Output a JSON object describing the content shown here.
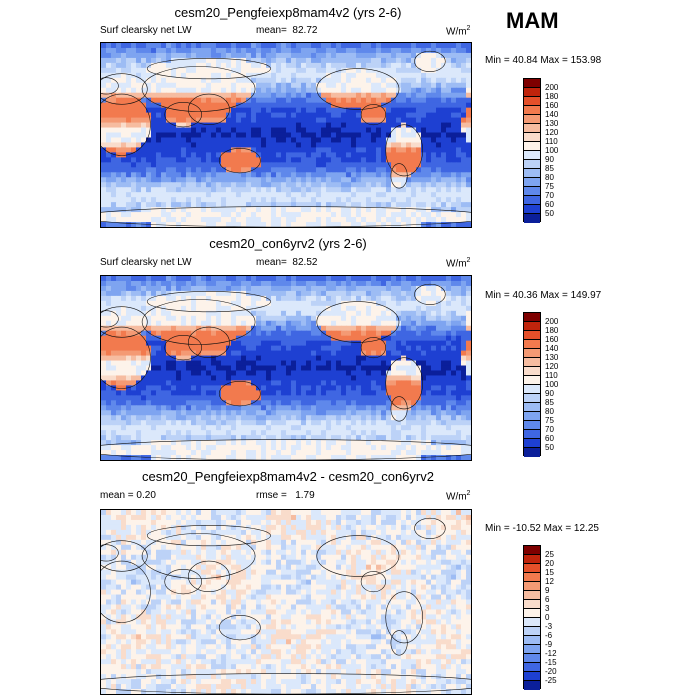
{
  "season": "MAM",
  "panels": [
    {
      "title": "cesm20_Pengfeiexp8mam4v2 (yrs 2-6)",
      "left_label": "Surf clearsky net LW",
      "mean_label": "mean=",
      "mean_value": "82.72",
      "units": "W/m",
      "units_exp": "2",
      "minmax": "Min =  40.84 Max = 153.98",
      "levels": [
        "200",
        "180",
        "160",
        "140",
        "130",
        "120",
        "110",
        "100",
        "90",
        "85",
        "80",
        "75",
        "70",
        "60",
        "50"
      ],
      "colors": [
        "#7e0000",
        "#c0240c",
        "#e5502a",
        "#f27a4e",
        "#f49a74",
        "#f6bca0",
        "#f9dccb",
        "#fdf3ea",
        "#dbe8fb",
        "#bcd2f7",
        "#9dbcf4",
        "#7ea4f0",
        "#5f88eb",
        "#3f66e2",
        "#1e40d2",
        "#0b1f9a"
      ],
      "field": "base"
    },
    {
      "title": "cesm20_con6yrv2 (yrs 2-6)",
      "left_label": "Surf clearsky net LW",
      "mean_label": "mean=",
      "mean_value": "82.52",
      "units": "W/m",
      "units_exp": "2",
      "minmax": "Min =  40.36 Max = 149.97",
      "levels": [
        "200",
        "180",
        "160",
        "140",
        "130",
        "120",
        "110",
        "100",
        "90",
        "85",
        "80",
        "75",
        "70",
        "60",
        "50"
      ],
      "colors": [
        "#7e0000",
        "#c0240c",
        "#e5502a",
        "#f27a4e",
        "#f49a74",
        "#f6bca0",
        "#f9dccb",
        "#fdf3ea",
        "#dbe8fb",
        "#bcd2f7",
        "#9dbcf4",
        "#7ea4f0",
        "#5f88eb",
        "#3f66e2",
        "#1e40d2",
        "#0b1f9a"
      ],
      "field": "base"
    },
    {
      "title": "cesm20_Pengfeiexp8mam4v2 - cesm20_con6yrv2",
      "left_label": "mean =   0.20",
      "mean_label": "rmse =",
      "mean_value": "1.79",
      "units": "W/m",
      "units_exp": "2",
      "minmax": "Min = -10.52 Max =  12.25",
      "levels": [
        "25",
        "20",
        "15",
        "12",
        "9",
        "6",
        "3",
        "0",
        "-3",
        "-6",
        "-9",
        "-12",
        "-15",
        "-20",
        "-25"
      ],
      "colors": [
        "#7e0000",
        "#c0240c",
        "#e5502a",
        "#f27a4e",
        "#f49a74",
        "#f6bca0",
        "#f9dccb",
        "#fdf3ea",
        "#dbe8fb",
        "#bcd2f7",
        "#9dbcf4",
        "#7ea4f0",
        "#5f88eb",
        "#3f66e2",
        "#1e40d2",
        "#0b1f9a"
      ],
      "field": "diff"
    }
  ],
  "chart_data": {
    "type": "heatmap",
    "title": "MAM",
    "variable": "Surf clearsky net LW",
    "units": "W/m2",
    "panels": [
      {
        "title": "cesm20_Pengfeiexp8mam4v2 (yrs 2-6)",
        "mean": 82.72,
        "min": 40.84,
        "max": 153.98,
        "levels": [
          50,
          60,
          70,
          75,
          80,
          85,
          90,
          100,
          110,
          120,
          130,
          140,
          160,
          180,
          200
        ]
      },
      {
        "title": "cesm20_con6yrv2 (yrs 2-6)",
        "mean": 82.52,
        "min": 40.36,
        "max": 149.97,
        "levels": [
          50,
          60,
          70,
          75,
          80,
          85,
          90,
          100,
          110,
          120,
          130,
          140,
          160,
          180,
          200
        ]
      },
      {
        "title": "cesm20_Pengfeiexp8mam4v2 - cesm20_con6yrv2",
        "mean": 0.2,
        "rmse": 1.79,
        "min": -10.52,
        "max": 12.25,
        "levels": [
          -25,
          -20,
          -15,
          -12,
          -9,
          -6,
          -3,
          0,
          3,
          6,
          9,
          12,
          15,
          20,
          25
        ]
      }
    ]
  }
}
